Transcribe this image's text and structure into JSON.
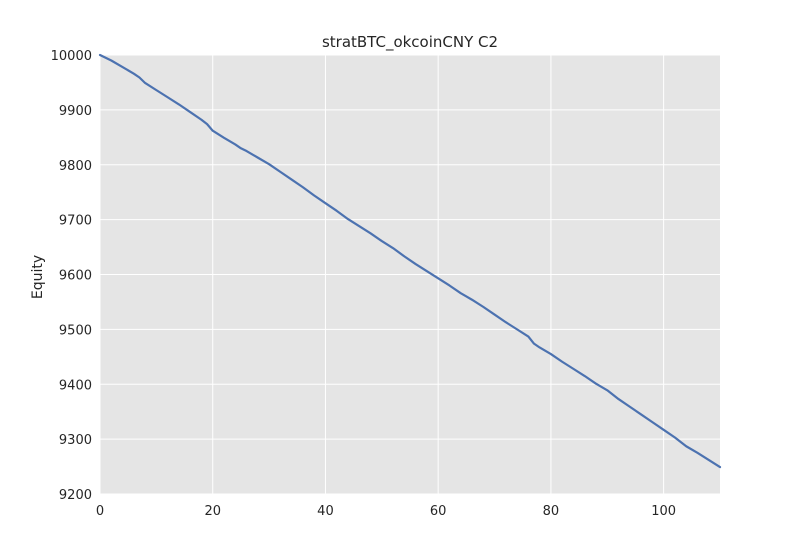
{
  "chart_data": {
    "type": "line",
    "title": "stratBTC_okcoinCNY C2",
    "xlabel": "",
    "ylabel": "Equity",
    "xlim": [
      0,
      110
    ],
    "ylim": [
      9200,
      10000
    ],
    "xticks": [
      0,
      20,
      40,
      60,
      80,
      100
    ],
    "yticks": [
      9200,
      9300,
      9400,
      9500,
      9600,
      9700,
      9800,
      9900,
      10000
    ],
    "grid": true,
    "legend": "none",
    "background_color": "#e5e5e5",
    "grid_color": "#ffffff",
    "series": [
      {
        "color": "#4c72b0",
        "x": [
          0,
          2,
          4,
          6,
          7,
          8,
          10,
          12,
          14,
          16,
          18,
          19,
          20,
          22,
          24,
          25,
          26,
          28,
          30,
          32,
          34,
          36,
          38,
          40,
          42,
          44,
          46,
          48,
          50,
          52,
          54,
          56,
          58,
          60,
          62,
          64,
          65,
          66,
          68,
          70,
          72,
          74,
          76,
          77,
          78,
          80,
          82,
          84,
          86,
          88,
          90,
          92,
          94,
          96,
          98,
          100,
          102,
          104,
          106,
          108,
          110
        ],
        "y": [
          10000,
          9990,
          9978,
          9966,
          9959,
          9949,
          9936,
          9923,
          9910,
          9896,
          9882,
          9874,
          9862,
          9849,
          9837,
          9830,
          9825,
          9813,
          9801,
          9787,
          9773,
          9759,
          9744,
          9730,
          9716,
          9701,
          9688,
          9675,
          9661,
          9648,
          9633,
          9619,
          9606,
          9593,
          9580,
          9566,
          9560,
          9554,
          9541,
          9527,
          9513,
          9500,
          9487,
          9474,
          9467,
          9455,
          9441,
          9428,
          9415,
          9401,
          9389,
          9373,
          9359,
          9345,
          9331,
          9317,
          9303,
          9287,
          9275,
          9262,
          9249
        ]
      }
    ]
  }
}
